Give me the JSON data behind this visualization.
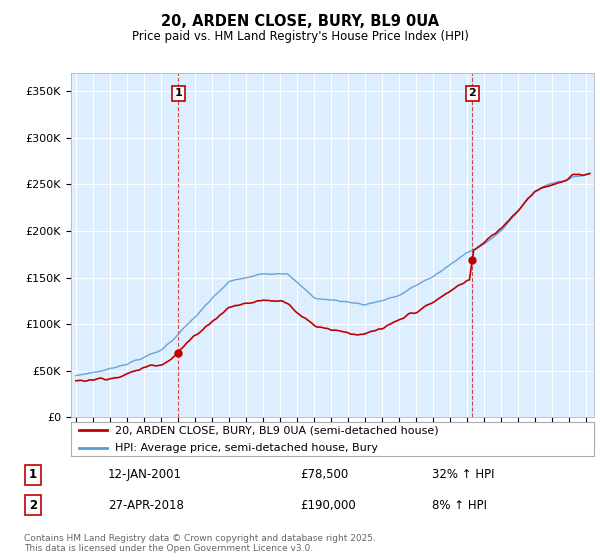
{
  "title": "20, ARDEN CLOSE, BURY, BL9 0UA",
  "subtitle": "Price paid vs. HM Land Registry's House Price Index (HPI)",
  "ylabel_ticks": [
    "£0",
    "£50K",
    "£100K",
    "£150K",
    "£200K",
    "£250K",
    "£300K",
    "£350K"
  ],
  "ytick_values": [
    0,
    50000,
    100000,
    150000,
    200000,
    250000,
    300000,
    350000
  ],
  "ylim": [
    0,
    370000
  ],
  "xlim_start": 1994.7,
  "xlim_end": 2025.5,
  "hpi_color": "#5b9bd5",
  "price_color": "#c00000",
  "bg_fill_color": "#ddeeff",
  "marker1_date": 2001.04,
  "marker1_label": "1",
  "marker1_price": 78500,
  "marker2_date": 2018.33,
  "marker2_label": "2",
  "marker2_price": 190000,
  "legend_line1": "20, ARDEN CLOSE, BURY, BL9 0UA (semi-detached house)",
  "legend_line2": "HPI: Average price, semi-detached house, Bury",
  "note1_num": "1",
  "note1_date": "12-JAN-2001",
  "note1_price": "£78,500",
  "note1_hpi": "32% ↑ HPI",
  "note2_num": "2",
  "note2_date": "27-APR-2018",
  "note2_price": "£190,000",
  "note2_hpi": "8% ↑ HPI",
  "footer": "Contains HM Land Registry data © Crown copyright and database right 2025.\nThis data is licensed under the Open Government Licence v3.0.",
  "background_color": "#ffffff",
  "grid_color": "#cccccc"
}
